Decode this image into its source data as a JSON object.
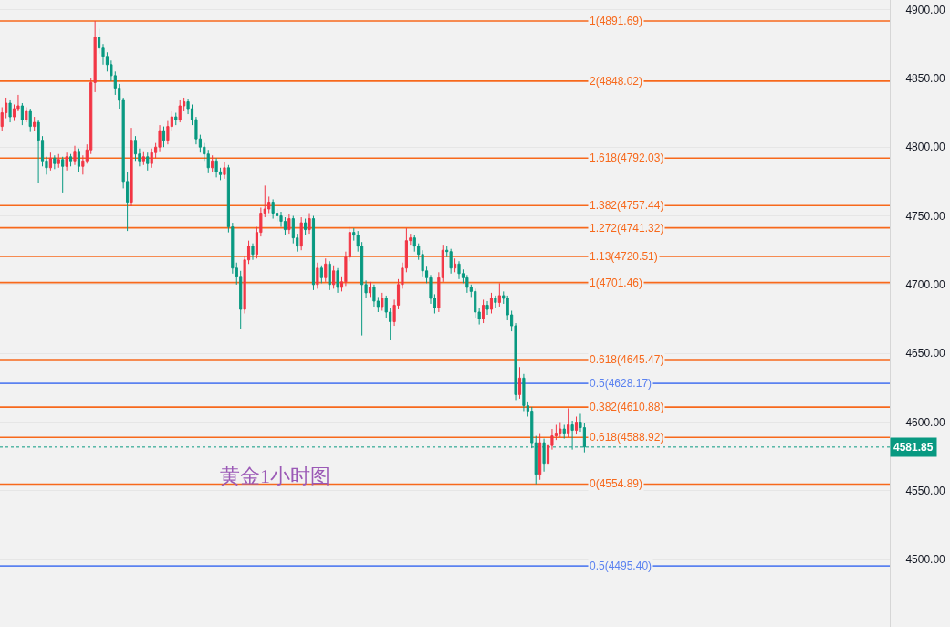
{
  "chart_data": {
    "type": "candlestick",
    "categories": [
      null,
      null,
      null,
      null,
      null,
      null,
      null,
      null,
      null,
      null,
      null,
      null,
      null,
      null,
      null,
      null,
      null,
      null,
      null,
      null,
      null,
      null,
      null,
      null,
      null,
      null,
      null,
      null,
      null,
      null,
      null,
      null,
      null,
      null,
      null,
      null,
      null,
      null,
      null,
      null,
      null,
      null,
      null,
      null,
      null,
      null,
      null,
      null,
      null,
      null,
      null,
      null,
      null,
      null,
      null,
      null,
      null,
      null,
      null,
      null,
      null,
      null,
      null,
      null,
      null,
      null,
      null,
      null,
      null,
      null,
      null,
      null,
      null,
      null,
      null,
      null,
      null,
      null,
      null,
      null,
      null,
      null,
      null,
      null,
      null,
      null,
      null,
      null,
      null,
      null,
      null,
      null,
      null,
      null,
      null,
      null,
      null,
      null,
      null,
      null,
      null,
      null,
      null,
      null,
      null,
      null,
      null,
      null,
      null,
      null,
      null,
      null,
      null,
      null,
      null,
      null,
      null,
      null,
      null,
      null,
      null,
      null,
      null,
      null,
      null,
      null,
      null,
      null,
      null,
      null,
      null,
      null,
      null,
      null,
      null,
      null,
      null,
      null,
      null,
      null,
      null,
      null,
      null,
      null,
      null,
      null,
      null,
      null,
      null,
      null,
      null,
      null,
      null,
      null,
      null,
      null,
      null,
      null,
      null,
      null,
      null,
      null,
      null,
      null,
      null,
      null,
      null,
      null,
      null,
      null,
      null,
      null,
      null,
      null,
      null,
      null,
      null,
      null,
      null,
      null,
      null,
      null,
      null,
      null,
      null,
      null,
      null,
      null,
      null,
      null,
      null,
      null,
      null,
      null,
      null,
      null,
      null,
      null,
      null,
      null,
      null,
      null,
      null,
      null,
      null,
      null,
      null,
      null,
      null,
      null,
      null,
      null,
      null,
      null,
      null,
      null,
      null,
      null,
      null,
      null
    ],
    "ohlc": [
      [
        4815,
        4829,
        4812,
        4825
      ],
      [
        4825,
        4836,
        4821,
        4832
      ],
      [
        4832,
        4834,
        4818,
        4822
      ],
      [
        4822,
        4831,
        4819,
        4828
      ],
      [
        4828,
        4838,
        4826,
        4830
      ],
      [
        4830,
        4832,
        4816,
        4820
      ],
      [
        4820,
        4829,
        4818,
        4826
      ],
      [
        4826,
        4828,
        4811,
        4815
      ],
      [
        4815,
        4822,
        4812,
        4818
      ],
      [
        4818,
        4820,
        4774,
        4805
      ],
      [
        4805,
        4808,
        4786,
        4790
      ],
      [
        4790,
        4793,
        4780,
        4785
      ],
      [
        4785,
        4796,
        4783,
        4792
      ],
      [
        4792,
        4794,
        4784,
        4788
      ],
      [
        4788,
        4795,
        4785,
        4791
      ],
      [
        4791,
        4793,
        4767,
        4786
      ],
      [
        4786,
        4796,
        4783,
        4793
      ],
      [
        4793,
        4795,
        4786,
        4790
      ],
      [
        4790,
        4801,
        4787,
        4797
      ],
      [
        4797,
        4799,
        4782,
        4786
      ],
      [
        4786,
        4794,
        4780,
        4790
      ],
      [
        4790,
        4802,
        4788,
        4798
      ],
      [
        4798,
        4850,
        4795,
        4847
      ],
      [
        4847,
        4891.69,
        4840,
        4880
      ],
      [
        4880,
        4886,
        4868,
        4872
      ],
      [
        4872,
        4875,
        4860,
        4866
      ],
      [
        4866,
        4869,
        4855,
        4860
      ],
      [
        4860,
        4863,
        4848,
        4852
      ],
      [
        4852,
        4855,
        4838,
        4843
      ],
      [
        4843,
        4846,
        4828,
        4834
      ],
      [
        4834,
        4836,
        4770,
        4775
      ],
      [
        4775,
        4782,
        4739,
        4760
      ],
      [
        4760,
        4814,
        4757,
        4805
      ],
      [
        4805,
        4808,
        4790,
        4795
      ],
      [
        4795,
        4799,
        4786,
        4790
      ],
      [
        4790,
        4797,
        4787,
        4793
      ],
      [
        4793,
        4796,
        4783,
        4788
      ],
      [
        4788,
        4799,
        4785,
        4796
      ],
      [
        4796,
        4803,
        4792,
        4800
      ],
      [
        4800,
        4816,
        4797,
        4812
      ],
      [
        4812,
        4815,
        4800,
        4805
      ],
      [
        4805,
        4819,
        4802,
        4815
      ],
      [
        4815,
        4826,
        4812,
        4822
      ],
      [
        4822,
        4825,
        4816,
        4820
      ],
      [
        4820,
        4834,
        4818,
        4830
      ],
      [
        4830,
        4836,
        4826,
        4833
      ],
      [
        4833,
        4835,
        4824,
        4828
      ],
      [
        4828,
        4831,
        4816,
        4820
      ],
      [
        4820,
        4822,
        4802,
        4806
      ],
      [
        4806,
        4809,
        4796,
        4800
      ],
      [
        4800,
        4803,
        4790,
        4795
      ],
      [
        4795,
        4798,
        4781,
        4785
      ],
      [
        4785,
        4794,
        4782,
        4790
      ],
      [
        4790,
        4792,
        4778,
        4782
      ],
      [
        4782,
        4785,
        4776,
        4780
      ],
      [
        4780,
        4789,
        4777,
        4785
      ],
      [
        4785,
        4787,
        4738,
        4742
      ],
      [
        4742,
        4745,
        4708,
        4712
      ],
      [
        4712,
        4716,
        4700,
        4706
      ],
      [
        4706,
        4710,
        4668,
        4682
      ],
      [
        4682,
        4721,
        4679,
        4718
      ],
      [
        4718,
        4732,
        4715,
        4728
      ],
      [
        4728,
        4730,
        4718,
        4722
      ],
      [
        4722,
        4742,
        4719,
        4738
      ],
      [
        4738,
        4756,
        4735,
        4752
      ],
      [
        4752,
        4772,
        4749,
        4755
      ],
      [
        4755,
        4764,
        4752,
        4760
      ],
      [
        4760,
        4762,
        4748,
        4752
      ],
      [
        4752,
        4755,
        4746,
        4750
      ],
      [
        4750,
        4753,
        4742,
        4746
      ],
      [
        4746,
        4749,
        4736,
        4740
      ],
      [
        4740,
        4751,
        4737,
        4748
      ],
      [
        4748,
        4750,
        4730,
        4734
      ],
      [
        4734,
        4737,
        4724,
        4728
      ],
      [
        4728,
        4749,
        4725,
        4745
      ],
      [
        4745,
        4748,
        4736,
        4740
      ],
      [
        4740,
        4752,
        4737,
        4748
      ],
      [
        4748,
        4750,
        4696,
        4700
      ],
      [
        4700,
        4716,
        4697,
        4712
      ],
      [
        4712,
        4714,
        4701,
        4705
      ],
      [
        4705,
        4719,
        4702,
        4715
      ],
      [
        4715,
        4717,
        4696,
        4700
      ],
      [
        4700,
        4714,
        4697,
        4710
      ],
      [
        4710,
        4712,
        4694,
        4698
      ],
      [
        4698,
        4706,
        4695,
        4702
      ],
      [
        4702,
        4724,
        4699,
        4720
      ],
      [
        4720,
        4742,
        4717,
        4738
      ],
      [
        4738,
        4741,
        4732,
        4736
      ],
      [
        4736,
        4739,
        4724,
        4728
      ],
      [
        4728,
        4731,
        4663,
        4700
      ],
      [
        4700,
        4703,
        4690,
        4694
      ],
      [
        4694,
        4702,
        4691,
        4698
      ],
      [
        4698,
        4700,
        4684,
        4688
      ],
      [
        4688,
        4691,
        4680,
        4684
      ],
      [
        4684,
        4694,
        4681,
        4690
      ],
      [
        4690,
        4692,
        4676,
        4680
      ],
      [
        4680,
        4683,
        4660,
        4673
      ],
      [
        4673,
        4689,
        4670,
        4685
      ],
      [
        4685,
        4704,
        4682,
        4700
      ],
      [
        4700,
        4716,
        4697,
        4712
      ],
      [
        4712,
        4741,
        4709,
        4732
      ],
      [
        4732,
        4737,
        4729,
        4734
      ],
      [
        4734,
        4736,
        4724,
        4728
      ],
      [
        4728,
        4730,
        4718,
        4722
      ],
      [
        4722,
        4725,
        4706,
        4710
      ],
      [
        4710,
        4713,
        4701,
        4705
      ],
      [
        4705,
        4707,
        4686,
        4690
      ],
      [
        4690,
        4693,
        4679,
        4683
      ],
      [
        4683,
        4709,
        4680,
        4705
      ],
      [
        4705,
        4729,
        4702,
        4725
      ],
      [
        4725,
        4728,
        4720,
        4724
      ],
      [
        4724,
        4726,
        4708,
        4712
      ],
      [
        4712,
        4719,
        4709,
        4715
      ],
      [
        4715,
        4717,
        4704,
        4708
      ],
      [
        4708,
        4711,
        4701,
        4705
      ],
      [
        4705,
        4707,
        4694,
        4698
      ],
      [
        4698,
        4700,
        4691,
        4695
      ],
      [
        4695,
        4697,
        4676,
        4680
      ],
      [
        4680,
        4683,
        4671,
        4675
      ],
      [
        4675,
        4689,
        4672,
        4685
      ],
      [
        4685,
        4688,
        4678,
        4682
      ],
      [
        4682,
        4694,
        4679,
        4690
      ],
      [
        4690,
        4692,
        4683,
        4687
      ],
      [
        4687,
        4701,
        4684,
        4692
      ],
      [
        4692,
        4695,
        4686,
        4690
      ],
      [
        4690,
        4692,
        4674,
        4678
      ],
      [
        4678,
        4681,
        4666,
        4670
      ],
      [
        4670,
        4672,
        4616,
        4620
      ],
      [
        4620,
        4640,
        4617,
        4632
      ],
      [
        4632,
        4635,
        4608,
        4612
      ],
      [
        4612,
        4615,
        4604,
        4608
      ],
      [
        4608,
        4611,
        4581,
        4585
      ],
      [
        4585,
        4590,
        4554.89,
        4562
      ],
      [
        4562,
        4592,
        4558,
        4585
      ],
      [
        4585,
        4588,
        4564,
        4570
      ],
      [
        4570,
        4586,
        4567,
        4583
      ],
      [
        4583,
        4595,
        4580,
        4590
      ],
      [
        4590,
        4598,
        4587,
        4592
      ],
      [
        4592,
        4600,
        4589,
        4595
      ],
      [
        4595,
        4598,
        4588,
        4592
      ],
      [
        4592,
        4610,
        4589,
        4598
      ],
      [
        4598,
        4601,
        4580,
        4594
      ],
      [
        4594,
        4604,
        4591,
        4600
      ],
      [
        4600,
        4606,
        4593,
        4596
      ],
      [
        4596,
        4599,
        4578,
        4581.85
      ],
      null,
      null,
      null,
      null,
      null,
      null,
      null,
      null,
      null,
      null,
      null,
      null,
      null,
      null,
      null,
      null,
      null,
      null,
      null,
      null,
      null,
      null,
      null,
      null,
      null,
      null,
      null,
      null,
      null,
      null,
      null,
      null,
      null,
      null,
      null,
      null,
      null,
      null,
      null,
      null,
      null,
      null,
      null,
      null,
      null,
      null,
      null,
      null,
      null,
      null,
      null,
      null,
      null,
      null,
      null,
      null,
      null,
      null,
      null,
      null,
      null,
      null,
      null,
      null,
      null,
      null,
      null,
      null,
      null,
      null,
      null,
      null,
      null,
      null,
      null
    ],
    "ylim": [
      4451,
      4907
    ],
    "yticks": [
      {
        "value": 4500,
        "label": "4500.00"
      },
      {
        "value": 4550,
        "label": "4550.00"
      },
      {
        "value": 4600,
        "label": "4600.00"
      },
      {
        "value": 4650,
        "label": "4650.00"
      },
      {
        "value": 4700,
        "label": "4700.00"
      },
      {
        "value": 4750,
        "label": "4750.00"
      },
      {
        "value": 4800,
        "label": "4800.00"
      },
      {
        "value": 4850,
        "label": "4850.00"
      },
      {
        "value": 4900,
        "label": "4900.00"
      }
    ],
    "ref_lines": [
      {
        "axis": "y",
        "value": 4891.69,
        "label": "1(4891.69)",
        "color": "#f7691c"
      },
      {
        "axis": "y",
        "value": 4848.02,
        "label": "2(4848.02)",
        "color": "#f7691c"
      },
      {
        "axis": "y",
        "value": 4792.03,
        "label": "1.618(4792.03)",
        "color": "#f7691c"
      },
      {
        "axis": "y",
        "value": 4757.44,
        "label": "1.382(4757.44)",
        "color": "#f7691c"
      },
      {
        "axis": "y",
        "value": 4741.32,
        "label": "1.272(4741.32)",
        "color": "#f7691c"
      },
      {
        "axis": "y",
        "value": 4720.51,
        "label": "1.13(4720.51)",
        "color": "#f7691c"
      },
      {
        "axis": "y",
        "value": 4701.46,
        "label": "1(4701.46)",
        "color": "#f7691c"
      },
      {
        "axis": "y",
        "value": 4645.47,
        "label": "0.618(4645.47)",
        "color": "#f7691c"
      },
      {
        "axis": "y",
        "value": 4628.17,
        "label": "0.5(4628.17)",
        "color": "#5b82f0"
      },
      {
        "axis": "y",
        "value": 4610.88,
        "label": "0.382(4610.88)",
        "color": "#f7691c"
      },
      {
        "axis": "y",
        "value": 4588.92,
        "label": "0.618(4588.92)",
        "color": "#f7691c"
      },
      {
        "axis": "y",
        "value": 4554.89,
        "label": "0(4554.89)",
        "color": "#f7691c"
      },
      {
        "axis": "y",
        "value": 4495.4,
        "label": "0.5(4495.40)",
        "color": "#5b82f0"
      },
      {
        "axis": "y",
        "value": 4581.85,
        "label": "4581.85",
        "color": "#089981",
        "line_style": "dotted"
      }
    ],
    "annotations": [
      "黄金1小时图"
    ],
    "grid": "y",
    "tick_labels": "y"
  }
}
